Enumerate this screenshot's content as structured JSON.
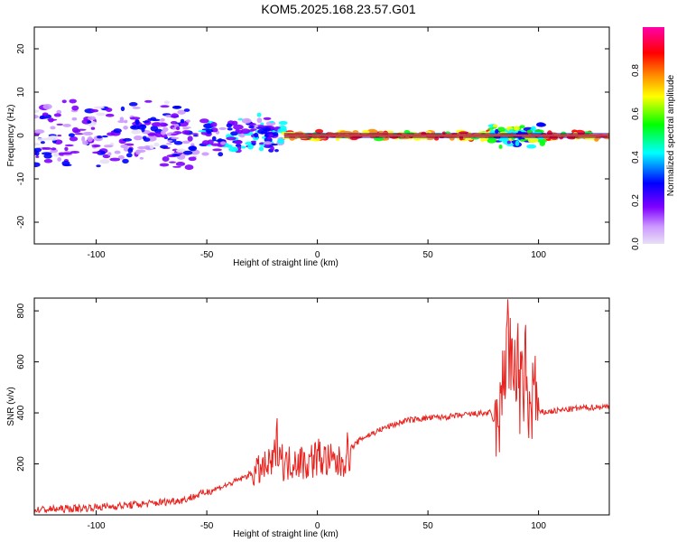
{
  "title": "KOM5.2025.168.23.57.G01",
  "chart_data": [
    {
      "type": "heatmap",
      "xlabel": "Height of straight line (km)",
      "ylabel": "Frequency (Hz)",
      "xlim": [
        -128,
        132
      ],
      "ylim": [
        -25,
        25
      ],
      "xticks": [
        -100,
        -50,
        0,
        50,
        100
      ],
      "yticks": [
        -20,
        -10,
        0,
        10,
        20
      ],
      "colorbar": {
        "label": "Normalized spectral amplitude",
        "range": [
          0,
          1
        ],
        "ticks": [
          "0.0",
          "0.2",
          "0.4",
          "0.6",
          "0.8"
        ],
        "colors": [
          "#e8e0f5",
          "#cc99ff",
          "#7f00ff",
          "#0000ff",
          "#00ffff",
          "#00ff00",
          "#ffff00",
          "#ff8800",
          "#ff0000",
          "#ff00aa"
        ]
      },
      "description_values": {
        "carrier_frequency_hz": 0,
        "bands": [
          {
            "x_from": -128,
            "x_to": -55,
            "spread_hz": 9,
            "level": 0.2
          },
          {
            "x_from": -55,
            "x_to": -15,
            "spread_hz": 5,
            "level": 0.3
          },
          {
            "x_from": -15,
            "x_to": 132,
            "spread_hz": 1,
            "level": 0.75
          },
          {
            "x_from": 78,
            "x_to": 102,
            "spread_hz": 3,
            "level": 0.45
          }
        ]
      }
    },
    {
      "type": "line",
      "xlabel": "Height of straight line (km)",
      "ylabel": "SNR (v/v)",
      "xlim": [
        -128,
        132
      ],
      "ylim": [
        0,
        850
      ],
      "xticks": [
        -100,
        -50,
        0,
        50,
        100
      ],
      "yticks": [
        200,
        400,
        600,
        800
      ],
      "line_color": "#e8231f",
      "series": [
        {
          "x": [
            -128,
            -110,
            -90,
            -75,
            -60,
            -50,
            -40,
            -30,
            -20,
            -18,
            -15,
            -10,
            -5,
            0,
            5,
            10,
            15,
            20,
            25,
            30,
            40,
            50,
            60,
            70,
            78,
            82,
            84,
            86,
            88,
            90,
            92,
            94,
            96,
            98,
            100,
            105,
            110,
            120,
            132
          ],
          "y": [
            20,
            25,
            35,
            45,
            60,
            90,
            120,
            160,
            200,
            300,
            190,
            220,
            200,
            230,
            210,
            200,
            260,
            300,
            320,
            340,
            370,
            380,
            385,
            395,
            400,
            330,
            520,
            800,
            500,
            640,
            450,
            560,
            380,
            520,
            400,
            405,
            410,
            420,
            425
          ]
        }
      ]
    }
  ]
}
